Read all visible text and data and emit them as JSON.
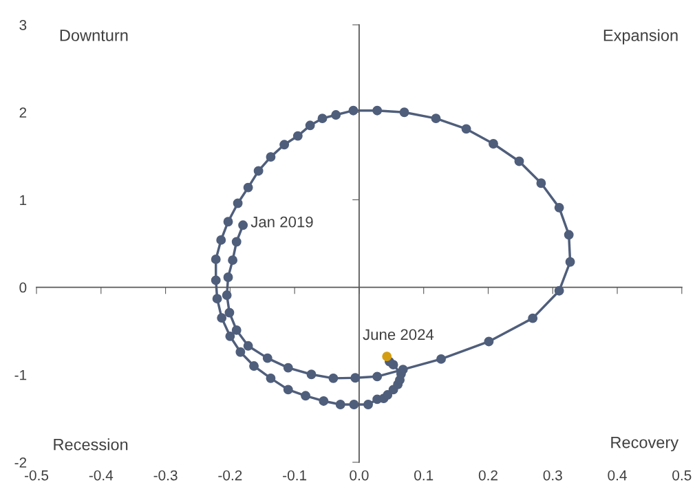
{
  "chart_data": {
    "type": "line",
    "x": [
      -0.18,
      -0.19,
      -0.196,
      -0.203,
      -0.205,
      -0.201,
      -0.19,
      -0.172,
      -0.142,
      -0.11,
      -0.074,
      -0.04,
      -0.006,
      0.028,
      0.068,
      0.127,
      0.201,
      0.269,
      0.31,
      0.327,
      0.325,
      0.31,
      0.282,
      0.248,
      0.208,
      0.166,
      0.119,
      0.07,
      0.028,
      -0.009,
      -0.036,
      -0.057,
      -0.076,
      -0.095,
      -0.116,
      -0.137,
      -0.156,
      -0.172,
      -0.188,
      -0.203,
      -0.214,
      -0.222,
      -0.222,
      -0.22,
      -0.213,
      -0.2,
      -0.184,
      -0.163,
      -0.137,
      -0.11,
      -0.083,
      -0.055,
      -0.029,
      -0.008,
      0.014,
      0.028,
      0.038,
      0.044,
      0.053,
      0.06,
      0.063,
      0.065,
      0.053,
      0.047,
      0.043
    ],
    "series": [
      {
        "color": "#4f5e7b",
        "colors": [
          "#4f5e7b",
          "#4f5e7b",
          "#4f5e7b",
          "#4f5e7b",
          "#4f5e7b",
          "#4f5e7b",
          "#4f5e7b",
          "#4f5e7b",
          "#4f5e7b",
          "#4f5e7b",
          "#4f5e7b",
          "#4f5e7b",
          "#4f5e7b",
          "#4f5e7b",
          "#4f5e7b",
          "#4f5e7b",
          "#4f5e7b",
          "#4f5e7b",
          "#4f5e7b",
          "#4f5e7b",
          "#4f5e7b",
          "#4f5e7b",
          "#4f5e7b",
          "#4f5e7b",
          "#4f5e7b",
          "#4f5e7b",
          "#4f5e7b",
          "#4f5e7b",
          "#4f5e7b",
          "#4f5e7b",
          "#4f5e7b",
          "#4f5e7b",
          "#4f5e7b",
          "#4f5e7b",
          "#4f5e7b",
          "#4f5e7b",
          "#4f5e7b",
          "#4f5e7b",
          "#4f5e7b",
          "#4f5e7b",
          "#4f5e7b",
          "#4f5e7b",
          "#4f5e7b",
          "#4f5e7b",
          "#4f5e7b",
          "#4f5e7b",
          "#4f5e7b",
          "#4f5e7b",
          "#4f5e7b",
          "#4f5e7b",
          "#4f5e7b",
          "#4f5e7b",
          "#4f5e7b",
          "#4f5e7b",
          "#4f5e7b",
          "#4f5e7b",
          "#4f5e7b",
          "#4f5e7b",
          "#4f5e7b",
          "#4f5e7b",
          "#4f5e7b",
          "#4f5e7b",
          "#4f5e7b",
          "#4f5e7b",
          "#d49e12"
        ],
        "values": [
          0.71,
          0.52,
          0.31,
          0.115,
          -0.09,
          -0.29,
          -0.49,
          -0.67,
          -0.81,
          -0.92,
          -0.996,
          -1.04,
          -1.035,
          -1.02,
          -0.94,
          -0.82,
          -0.62,
          -0.354,
          -0.04,
          0.29,
          0.6,
          0.91,
          1.19,
          1.44,
          1.64,
          1.81,
          1.93,
          2.0,
          2.02,
          2.02,
          1.97,
          1.93,
          1.85,
          1.73,
          1.63,
          1.49,
          1.33,
          1.14,
          0.96,
          0.75,
          0.54,
          0.32,
          0.08,
          -0.13,
          -0.35,
          -0.56,
          -0.74,
          -0.9,
          -1.04,
          -1.17,
          -1.24,
          -1.3,
          -1.34,
          -1.34,
          -1.34,
          -1.28,
          -1.27,
          -1.23,
          -1.17,
          -1.11,
          -1.06,
          -0.99,
          -0.885,
          -0.85,
          -0.79
        ]
      }
    ],
    "xlim": [
      -0.5,
      0.5
    ],
    "ylim": [
      -2,
      3
    ],
    "xticks": [
      -0.5,
      -0.4,
      -0.3,
      -0.2,
      -0.1,
      {
        "value": 0,
        "label": "0.0"
      },
      0.1,
      0.2,
      0.3,
      0.4,
      0.5
    ],
    "yticks": [
      -2,
      -1,
      0,
      1,
      2,
      3
    ],
    "marker": "circle",
    "line_style": "solid",
    "legend": false,
    "annotations": [
      "Downturn",
      "Expansion",
      "Recession",
      "Recovery",
      {
        "text": "Jan 2019",
        "x": -0.18,
        "y": 0.71
      },
      {
        "text": "June 2024",
        "x": 0.043,
        "y": -0.79
      }
    ]
  }
}
